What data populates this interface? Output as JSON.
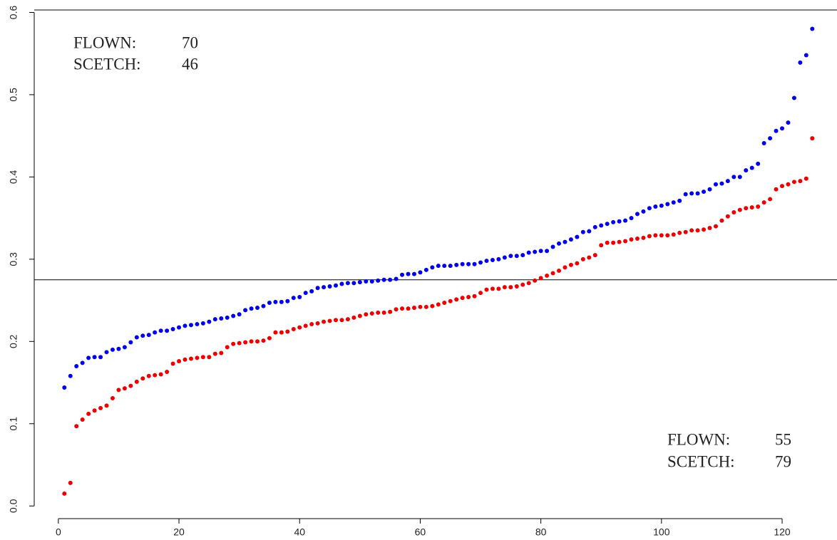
{
  "chart_data": {
    "type": "scatter",
    "x": [
      1,
      2,
      3,
      4,
      5,
      6,
      7,
      8,
      9,
      10,
      11,
      12,
      13,
      14,
      15,
      16,
      17,
      18,
      19,
      20,
      21,
      22,
      23,
      24,
      25,
      26,
      27,
      28,
      29,
      30,
      31,
      32,
      33,
      34,
      35,
      36,
      37,
      38,
      39,
      40,
      41,
      42,
      43,
      44,
      45,
      46,
      47,
      48,
      49,
      50,
      51,
      52,
      53,
      54,
      55,
      56,
      57,
      58,
      59,
      60,
      61,
      62,
      63,
      64,
      65,
      66,
      67,
      68,
      69,
      70,
      71,
      72,
      73,
      74,
      75,
      76,
      77,
      78,
      79,
      80,
      81,
      82,
      83,
      84,
      85,
      86,
      87,
      88,
      89,
      90,
      91,
      92,
      93,
      94,
      95,
      96,
      97,
      98,
      99,
      100,
      101,
      102,
      103,
      104,
      105,
      106,
      107,
      108,
      109,
      110,
      111,
      112,
      113,
      114,
      115,
      116,
      117,
      118,
      119,
      120,
      121,
      122,
      123,
      124,
      125
    ],
    "series": [
      {
        "color": "#0000ee",
        "values": [
          0.144,
          0.158,
          0.17,
          0.174,
          0.18,
          0.181,
          0.181,
          0.187,
          0.19,
          0.191,
          0.193,
          0.199,
          0.205,
          0.207,
          0.208,
          0.211,
          0.213,
          0.213,
          0.215,
          0.217,
          0.219,
          0.22,
          0.221,
          0.222,
          0.224,
          0.227,
          0.228,
          0.229,
          0.231,
          0.233,
          0.238,
          0.24,
          0.241,
          0.243,
          0.247,
          0.248,
          0.248,
          0.249,
          0.253,
          0.254,
          0.259,
          0.261,
          0.265,
          0.266,
          0.267,
          0.268,
          0.27,
          0.271,
          0.271,
          0.272,
          0.273,
          0.273,
          0.274,
          0.275,
          0.275,
          0.276,
          0.281,
          0.282,
          0.282,
          0.284,
          0.287,
          0.29,
          0.292,
          0.292,
          0.292,
          0.293,
          0.294,
          0.294,
          0.294,
          0.296,
          0.298,
          0.299,
          0.3,
          0.302,
          0.304,
          0.304,
          0.305,
          0.308,
          0.309,
          0.31,
          0.31,
          0.315,
          0.319,
          0.321,
          0.324,
          0.327,
          0.333,
          0.334,
          0.339,
          0.341,
          0.343,
          0.345,
          0.346,
          0.347,
          0.35,
          0.355,
          0.358,
          0.362,
          0.364,
          0.365,
          0.367,
          0.369,
          0.371,
          0.379,
          0.38,
          0.38,
          0.382,
          0.385,
          0.391,
          0.392,
          0.395,
          0.4,
          0.4,
          0.408,
          0.411,
          0.416,
          0.441,
          0.447,
          0.456,
          0.459,
          0.466,
          0.496,
          0.539,
          0.548,
          0.58
        ]
      },
      {
        "color": "#ee0000",
        "values": [
          0.015,
          0.028,
          0.097,
          0.105,
          0.112,
          0.116,
          0.119,
          0.122,
          0.131,
          0.141,
          0.143,
          0.146,
          0.151,
          0.155,
          0.158,
          0.159,
          0.16,
          0.163,
          0.173,
          0.176,
          0.178,
          0.179,
          0.18,
          0.181,
          0.181,
          0.185,
          0.186,
          0.193,
          0.197,
          0.198,
          0.199,
          0.2,
          0.2,
          0.201,
          0.204,
          0.211,
          0.211,
          0.212,
          0.215,
          0.217,
          0.219,
          0.221,
          0.222,
          0.224,
          0.225,
          0.226,
          0.226,
          0.227,
          0.229,
          0.231,
          0.233,
          0.234,
          0.235,
          0.235,
          0.236,
          0.239,
          0.24,
          0.24,
          0.241,
          0.242,
          0.242,
          0.243,
          0.245,
          0.247,
          0.249,
          0.251,
          0.253,
          0.254,
          0.255,
          0.259,
          0.263,
          0.264,
          0.264,
          0.266,
          0.266,
          0.267,
          0.269,
          0.271,
          0.274,
          0.277,
          0.28,
          0.283,
          0.286,
          0.29,
          0.293,
          0.295,
          0.3,
          0.302,
          0.305,
          0.317,
          0.32,
          0.32,
          0.321,
          0.322,
          0.324,
          0.325,
          0.326,
          0.328,
          0.329,
          0.329,
          0.329,
          0.33,
          0.332,
          0.333,
          0.335,
          0.335,
          0.336,
          0.338,
          0.34,
          0.347,
          0.352,
          0.357,
          0.36,
          0.362,
          0.363,
          0.364,
          0.369,
          0.373,
          0.385,
          0.389,
          0.391,
          0.394,
          0.395,
          0.398,
          0.447
        ]
      }
    ],
    "hline": 0.275,
    "xlim": [
      -4,
      129.1
    ],
    "ylim": [
      -0.005,
      0.603
    ],
    "xticks": [
      0,
      20,
      40,
      60,
      80,
      100,
      120
    ],
    "yticks": [
      {
        "value": 0,
        "label": "0.0"
      },
      0.1,
      0.2,
      0.3,
      0.4,
      0.5,
      0.6
    ],
    "annotations": [
      {
        "label": "FLOWN:",
        "value": 70,
        "color": "#0000ee"
      },
      {
        "label": "SCETCH:",
        "value": 46,
        "color": "#ee0000"
      },
      {
        "label": "FLOWN:",
        "value": 55,
        "color": "#0000ee"
      },
      {
        "label": "SCETCH:",
        "value": 79,
        "color": "#ee0000"
      }
    ]
  }
}
